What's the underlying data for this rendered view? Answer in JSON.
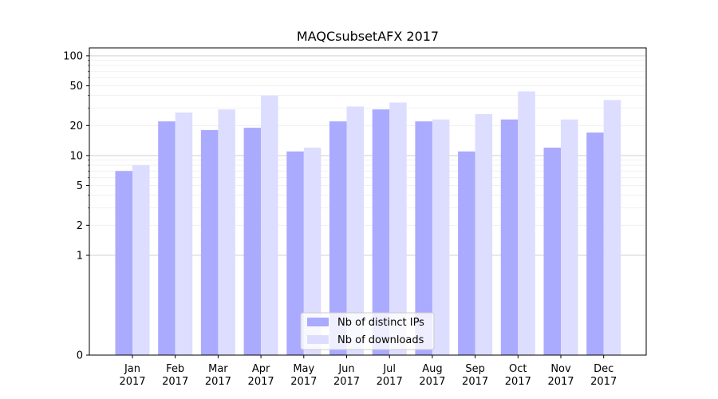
{
  "chart_data": {
    "type": "bar",
    "title": "MAQCsubsetAFX 2017",
    "xlabel": "",
    "ylabel": "",
    "yscale": "symlog",
    "ylim": [
      0,
      120
    ],
    "yticks": [
      0,
      1,
      2,
      5,
      10,
      20,
      50,
      100
    ],
    "grid": true,
    "legend_position": "bottom-center",
    "categories": [
      "Jan\n2017",
      "Feb\n2017",
      "Mar\n2017",
      "Apr\n2017",
      "May\n2017",
      "Jun\n2017",
      "Jul\n2017",
      "Aug\n2017",
      "Sep\n2017",
      "Oct\n2017",
      "Nov\n2017",
      "Dec\n2017"
    ],
    "series": [
      {
        "name": "Nb of distinct IPs",
        "color": "#aaaaff",
        "values": [
          7,
          22,
          18,
          19,
          11,
          22,
          29,
          22,
          11,
          23,
          12,
          17
        ]
      },
      {
        "name": "Nb of downloads",
        "color": "#ddddff",
        "values": [
          8,
          27,
          29,
          40,
          12,
          31,
          34,
          23,
          26,
          44,
          23,
          36
        ]
      }
    ]
  }
}
